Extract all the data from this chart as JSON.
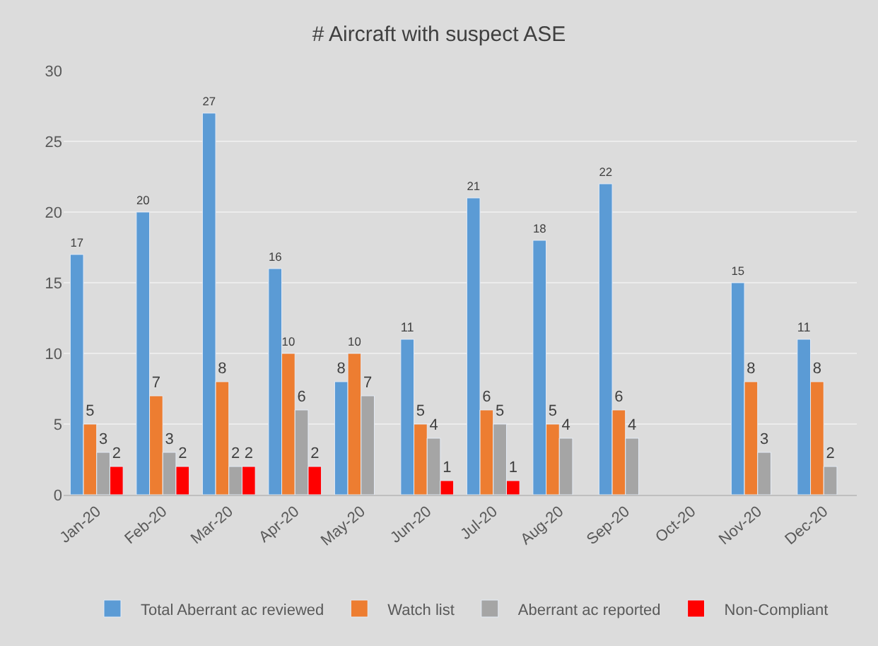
{
  "chart_data": {
    "type": "bar",
    "title": "# Aircraft with suspect ASE",
    "categories": [
      "Jan-20",
      "Feb-20",
      "Mar-20",
      "Apr-20",
      "May-20",
      "Jun-20",
      "Jul-20",
      "Aug-20",
      "Sep-20",
      "Oct-20",
      "Nov-20",
      "Dec-20"
    ],
    "series": [
      {
        "name": "Total Aberrant ac reviewed",
        "color": "#5b9bd5",
        "values": [
          17,
          20,
          27,
          16,
          8,
          11,
          21,
          18,
          22,
          null,
          15,
          11
        ]
      },
      {
        "name": "Watch list",
        "color": "#ed7d31",
        "values": [
          5,
          7,
          8,
          10,
          10,
          5,
          6,
          5,
          6,
          null,
          8,
          8
        ]
      },
      {
        "name": "Aberrant ac reported",
        "color": "#a5a5a5",
        "values": [
          3,
          3,
          2,
          6,
          7,
          4,
          5,
          4,
          4,
          null,
          3,
          2
        ]
      },
      {
        "name": "Non-Compliant",
        "color": "#ff0000",
        "values": [
          2,
          2,
          2,
          2,
          null,
          1,
          1,
          null,
          null,
          null,
          null,
          null
        ]
      }
    ],
    "ylim": [
      0,
      30
    ],
    "yticks": [
      0,
      5,
      10,
      15,
      20,
      25,
      30
    ],
    "grid": "y",
    "legend": "bottom",
    "data_labels": true
  }
}
